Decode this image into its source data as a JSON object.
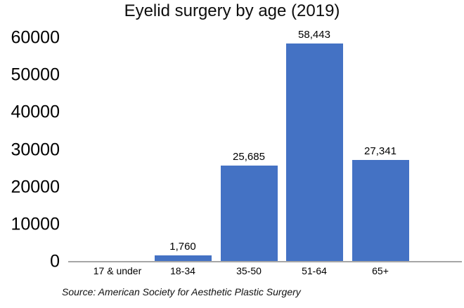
{
  "page": {
    "title": "Eyelid surgery by age (2019)",
    "source_note": "Source: American Society for Aesthetic Plastic Surgery"
  },
  "colors": {
    "bar_fill": "#4472c4",
    "axis_line": "#a6a6a6",
    "text": "#000000"
  },
  "chart_data": {
    "type": "bar",
    "title": "Eyelid surgery by age (2019)",
    "categories": [
      "17 & under",
      "18-34",
      "35-50",
      "51-64",
      "65+"
    ],
    "values": [
      0,
      1760,
      25685,
      58443,
      27341
    ],
    "data_labels": [
      "",
      "1,760",
      "25,685",
      "58,443",
      "27,341"
    ],
    "xlabel": "",
    "ylabel": "",
    "ylim": [
      0,
      60000
    ],
    "yticks": [
      0,
      10000,
      20000,
      30000,
      40000,
      50000,
      60000
    ],
    "ytick_labels": [
      "0",
      "10000",
      "20000",
      "30000",
      "40000",
      "50000",
      "60000"
    ],
    "grid": false,
    "legend": false,
    "source_note": "Source: American Society for Aesthetic Plastic Surgery"
  }
}
